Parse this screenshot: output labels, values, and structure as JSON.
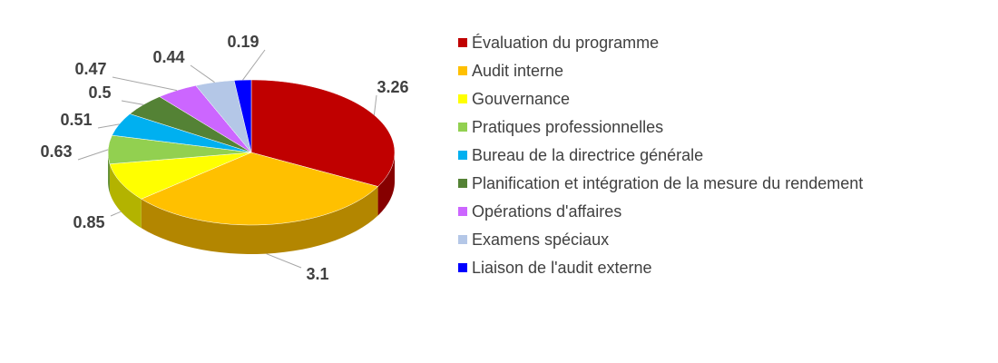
{
  "chart_data": {
    "type": "pie",
    "categories": [
      "Évaluation du programme",
      "Audit interne",
      "Gouvernance",
      "Pratiques professionnelles",
      "Bureau de la directrice générale",
      "Planification et intégration de la mesure du rendement",
      "Opérations d'affaires",
      "Examens spéciaux",
      "Liaison de l'audit externe"
    ],
    "values": [
      3.26,
      3.1,
      0.85,
      0.63,
      0.51,
      0.5,
      0.47,
      0.44,
      0.19
    ],
    "colors": [
      "#c00000",
      "#ffc000",
      "#ffff00",
      "#92d050",
      "#00b0f0",
      "#548235",
      "#cc66ff",
      "#b4c7e7",
      "#0000ff"
    ],
    "legend": "right"
  }
}
